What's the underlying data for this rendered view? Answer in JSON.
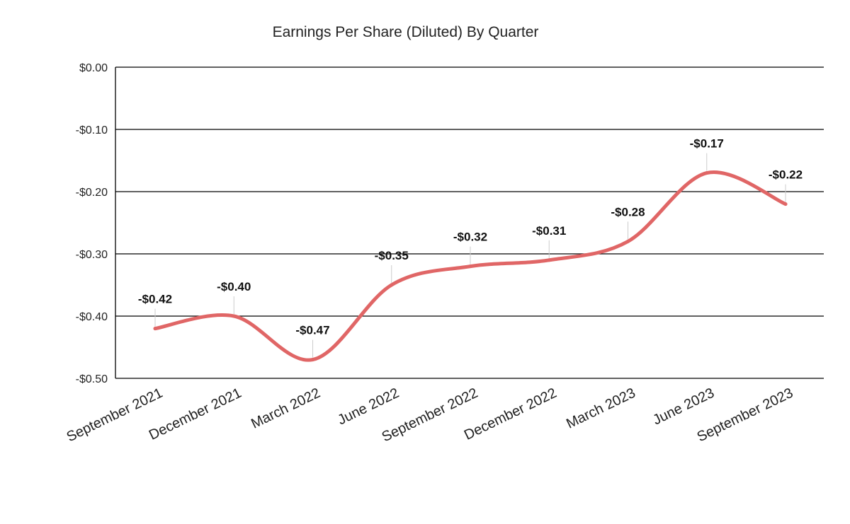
{
  "chart_data": {
    "type": "line",
    "title": "Earnings Per Share (Diluted) By Quarter",
    "xlabel": "",
    "ylabel": "",
    "categories": [
      "September 2021",
      "December 2021",
      "March 2022",
      "June 2022",
      "September 2022",
      "December 2022",
      "March 2023",
      "June 2023",
      "September 2023"
    ],
    "series": [
      {
        "values": [
          -0.42,
          -0.4,
          -0.47,
          -0.35,
          -0.32,
          -0.31,
          -0.28,
          -0.17,
          -0.22
        ],
        "labels": [
          "-$0.42",
          "-$0.40",
          "-$0.47",
          "-$0.35",
          "-$0.32",
          "-$0.31",
          "-$0.28",
          "-$0.17",
          "-$0.22"
        ]
      }
    ],
    "ylim": [
      -0.5,
      0
    ],
    "yticks": [
      0,
      -0.1,
      -0.2,
      -0.3,
      -0.4,
      -0.5
    ],
    "ytick_labels": [
      "$0.00",
      "-$0.10",
      "-$0.20",
      "-$0.30",
      "-$0.40",
      "-$0.50"
    ],
    "grid": true,
    "line_style": "smooth",
    "colors": {
      "line": "#e06666",
      "grid": "#000000",
      "leader": "#cccccc"
    }
  }
}
